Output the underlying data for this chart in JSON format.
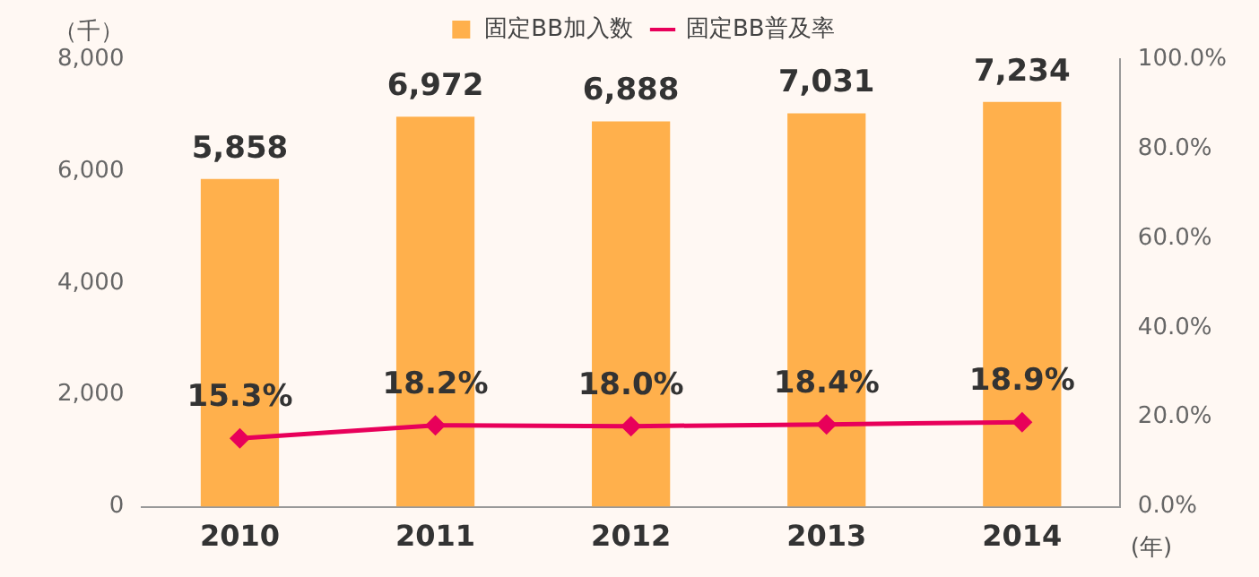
{
  "chart_data": {
    "type": "bar",
    "categories": [
      "2010",
      "2011",
      "2012",
      "2013",
      "2014"
    ],
    "series": [
      {
        "name": "固定BB加入数",
        "color": "#ffb04c",
        "values": [
          5858,
          6972,
          6888,
          7031,
          7234
        ],
        "value_labels": [
          "5,858",
          "6,972",
          "6,888",
          "7,031",
          "7,234"
        ]
      },
      {
        "name": "固定BB普及率",
        "type": "line",
        "axis": "y2",
        "color": "#e8005a",
        "marker": "diamond",
        "values": [
          15.3,
          18.2,
          18.0,
          18.4,
          18.9
        ],
        "value_labels": [
          "15.3%",
          "18.2%",
          "18.0%",
          "18.4%",
          "18.9%"
        ]
      }
    ],
    "ylim": [
      0,
      8000
    ],
    "yticks": [
      {
        "value": 0,
        "label": "0"
      },
      {
        "value": 2000,
        "label": "2,000"
      },
      {
        "value": 4000,
        "label": "4,000"
      },
      {
        "value": 6000,
        "label": "6,000"
      },
      {
        "value": 8000,
        "label": "8,000"
      }
    ],
    "y2lim": [
      0,
      100
    ],
    "y2ticks": [
      {
        "value": 0,
        "label": "0.0%"
      },
      {
        "value": 20,
        "label": "20.0%"
      },
      {
        "value": 40,
        "label": "40.0%"
      },
      {
        "value": 60,
        "label": "60.0%"
      },
      {
        "value": 80,
        "label": "80.0%"
      },
      {
        "value": 100,
        "label": "100.0%"
      }
    ],
    "legend": "top",
    "grid": false,
    "annotations": [
      "（千）",
      "(年)"
    ]
  }
}
